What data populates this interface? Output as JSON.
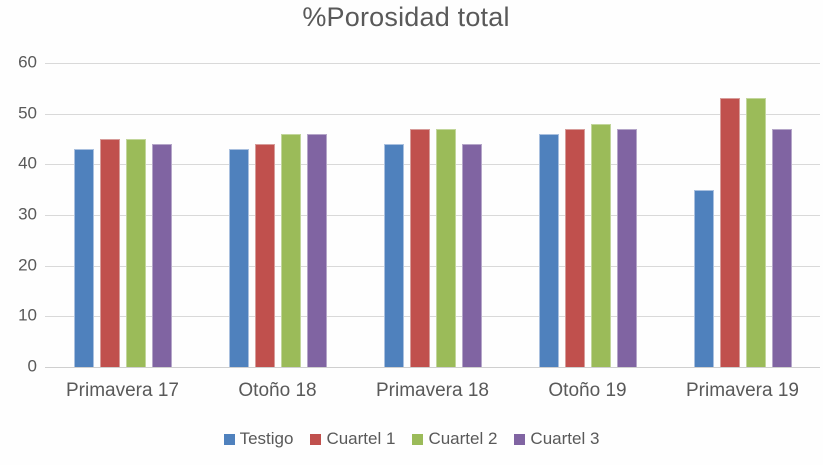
{
  "chart_data": {
    "type": "bar",
    "title": "%Porosidad total",
    "categories": [
      "Primavera 17",
      "Otoño 18",
      "Primavera 18",
      "Otoño 19",
      "Primavera 19"
    ],
    "series": [
      {
        "name": "Testigo",
        "color": "#4F81BD",
        "edge_color": "#A9C0DF",
        "values": [
          43,
          43,
          44,
          46,
          35
        ]
      },
      {
        "name": "Cuartel 1",
        "color": "#C0504D",
        "edge_color": "#D79C9A",
        "values": [
          45,
          44,
          47,
          47,
          53
        ]
      },
      {
        "name": "Cuartel 2",
        "color": "#9BBB59",
        "edge_color": "#C2D69B",
        "values": [
          45,
          46,
          47,
          48,
          53
        ]
      },
      {
        "name": "Cuartel 3",
        "color": "#8064A2",
        "edge_color": "#B5A6C9",
        "values": [
          44,
          46,
          44,
          47,
          47
        ]
      }
    ],
    "xlabel": "",
    "ylabel": "",
    "ylim": [
      0,
      60
    ],
    "yticks": [
      0,
      10,
      20,
      30,
      40,
      50,
      60
    ],
    "grid": true,
    "legend_position": "bottom",
    "styles": {
      "title_color": "#595959",
      "axis_text_color": "#595959",
      "gridline_color": "#D9D9D9",
      "background": "#FEFEFE"
    }
  }
}
